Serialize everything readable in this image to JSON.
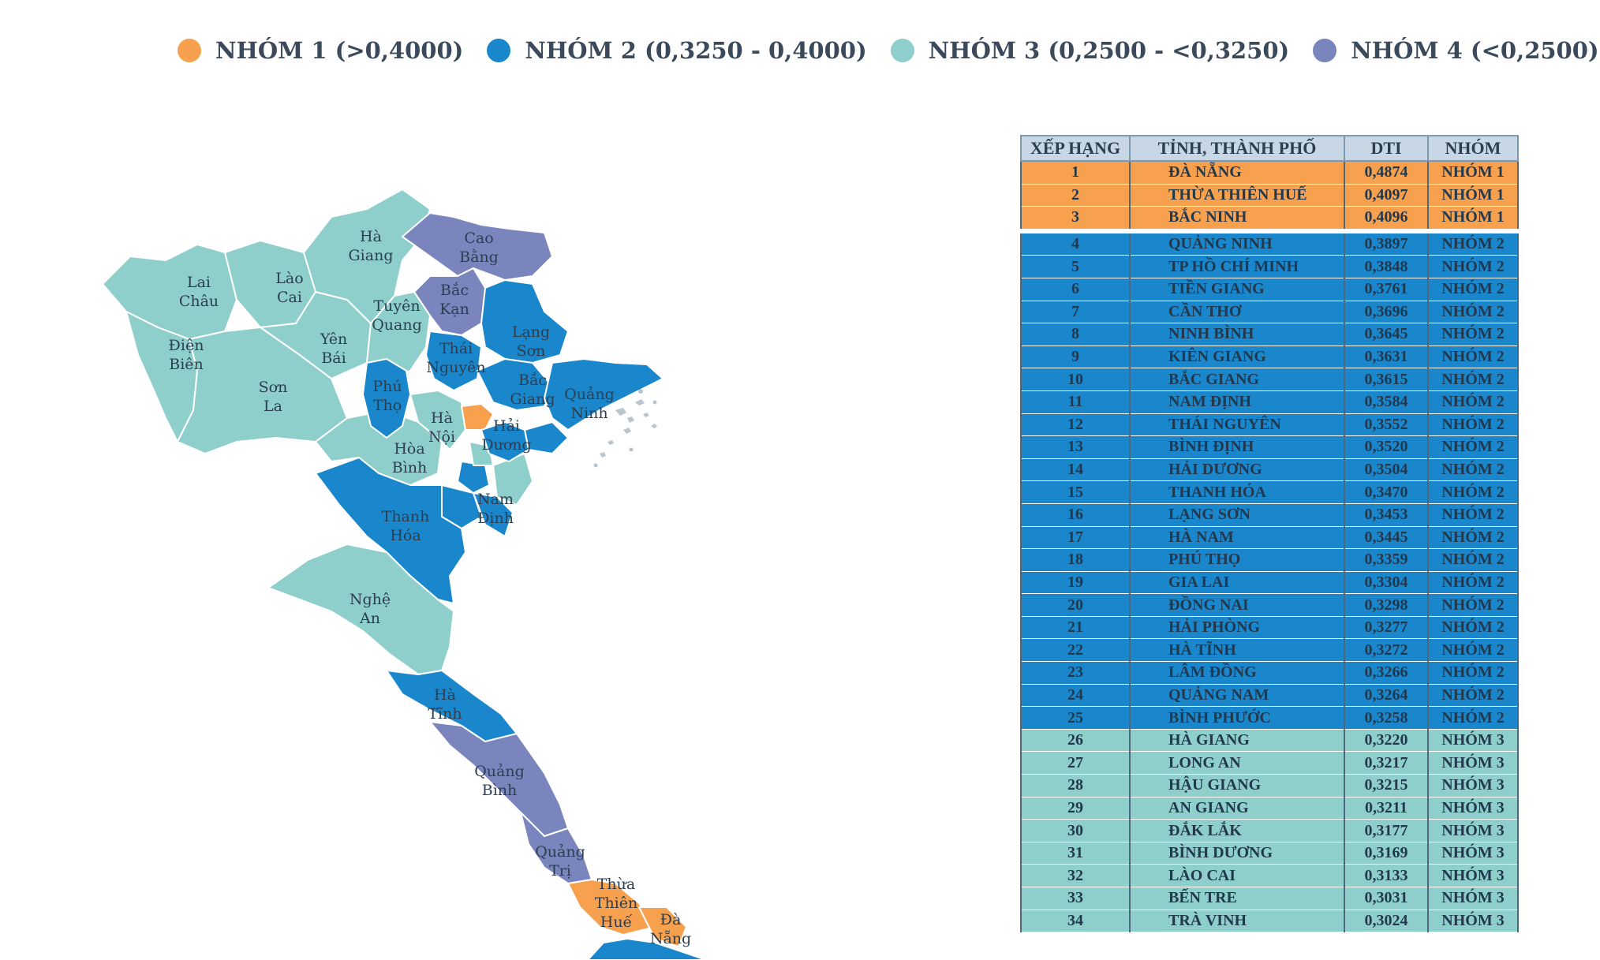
{
  "legend": [
    {
      "label": "NHÓM 1 (>0,4000)",
      "color": "#f7a14e"
    },
    {
      "label": "NHÓM 2 (0,3250 - 0,4000)",
      "color": "#1a86cc"
    },
    {
      "label": "NHÓM 3 (0,2500 - <0,3250)",
      "color": "#8ecfcb"
    },
    {
      "label": "NHÓM 4 (<0,2500)",
      "color": "#7b85bd"
    }
  ],
  "colors": {
    "group1": "#f7a14e",
    "group2": "#1a86cc",
    "group3": "#8ecfcb",
    "group4": "#7b85bd"
  },
  "map_labels": [
    "Hà\nGiang",
    "Cao\nBằng",
    "Lai\nChâu",
    "Lào\nCai",
    "Bắc\nKạn",
    "Tuyên\nQuang",
    "Điện\nBiên",
    "Yên\nBái",
    "Lạng\nSơn",
    "Thái\nNguyên",
    "Sơn\nLa",
    "Phú\nThọ",
    "Bắc\nGiang",
    "Quảng\nNinh",
    "Hà\nNội",
    "Hải\nDương",
    "Hòa\nBình",
    "Nam\nĐịnh",
    "Thanh\nHóa",
    "Nghệ\nAn",
    "Hà\nTĩnh",
    "Quảng\nBình",
    "Quảng\nTrị",
    "Thừa\nThiên\nHuế",
    "Đà\nNẵng"
  ],
  "table": {
    "headers": [
      "XẾP HẠNG",
      "TỈNH, THÀNH PHỐ",
      "DTI",
      "NHÓM"
    ],
    "rows": [
      {
        "rank": "1",
        "name": "ĐÀ NẴNG",
        "dti": "0,4874",
        "group": "NHÓM 1",
        "g": 1
      },
      {
        "rank": "2",
        "name": "THỪA THIÊN HUẾ",
        "dti": "0,4097",
        "group": "NHÓM 1",
        "g": 1
      },
      {
        "rank": "3",
        "name": "BẮC NINH",
        "dti": "0,4096",
        "group": "NHÓM 1",
        "g": 1
      },
      {
        "rank": "4",
        "name": "QUẢNG NINH",
        "dti": "0,3897",
        "group": "NHÓM 2",
        "g": 2
      },
      {
        "rank": "5",
        "name": "TP HỒ CHÍ MINH",
        "dti": "0,3848",
        "group": "NHÓM 2",
        "g": 2
      },
      {
        "rank": "6",
        "name": "TIỀN GIANG",
        "dti": "0,3761",
        "group": "NHÓM 2",
        "g": 2
      },
      {
        "rank": "7",
        "name": "CẦN THƠ",
        "dti": "0,3696",
        "group": "NHÓM 2",
        "g": 2
      },
      {
        "rank": "8",
        "name": "NINH BÌNH",
        "dti": "0,3645",
        "group": "NHÓM 2",
        "g": 2
      },
      {
        "rank": "9",
        "name": "KIÊN GIANG",
        "dti": "0,3631",
        "group": "NHÓM 2",
        "g": 2
      },
      {
        "rank": "10",
        "name": "BẮC GIANG",
        "dti": "0,3615",
        "group": "NHÓM 2",
        "g": 2
      },
      {
        "rank": "11",
        "name": "NAM ĐỊNH",
        "dti": "0,3584",
        "group": "NHÓM 2",
        "g": 2
      },
      {
        "rank": "12",
        "name": "THÁI NGUYÊN",
        "dti": "0,3552",
        "group": "NHÓM 2",
        "g": 2
      },
      {
        "rank": "13",
        "name": "BÌNH ĐỊNH",
        "dti": "0,3520",
        "group": "NHÓM 2",
        "g": 2
      },
      {
        "rank": "14",
        "name": "HẢI DƯƠNG",
        "dti": "0,3504",
        "group": "NHÓM 2",
        "g": 2
      },
      {
        "rank": "15",
        "name": "THANH HÓA",
        "dti": "0,3470",
        "group": "NHÓM 2",
        "g": 2
      },
      {
        "rank": "16",
        "name": "LẠNG SƠN",
        "dti": "0,3453",
        "group": "NHÓM 2",
        "g": 2
      },
      {
        "rank": "17",
        "name": "HÀ NAM",
        "dti": "0,3445",
        "group": "NHÓM 2",
        "g": 2
      },
      {
        "rank": "18",
        "name": "PHÚ THỌ",
        "dti": "0,3359",
        "group": "NHÓM 2",
        "g": 2
      },
      {
        "rank": "19",
        "name": "GIA LAI",
        "dti": "0,3304",
        "group": "NHÓM 2",
        "g": 2
      },
      {
        "rank": "20",
        "name": "ĐỒNG NAI",
        "dti": "0,3298",
        "group": "NHÓM 2",
        "g": 2
      },
      {
        "rank": "21",
        "name": "HẢI PHÒNG",
        "dti": "0,3277",
        "group": "NHÓM 2",
        "g": 2
      },
      {
        "rank": "22",
        "name": "HÀ TĨNH",
        "dti": "0,3272",
        "group": "NHÓM 2",
        "g": 2
      },
      {
        "rank": "23",
        "name": "LÂM ĐỒNG",
        "dti": "0,3266",
        "group": "NHÓM 2",
        "g": 2
      },
      {
        "rank": "24",
        "name": "QUẢNG NAM",
        "dti": "0,3264",
        "group": "NHÓM 2",
        "g": 2
      },
      {
        "rank": "25",
        "name": "BÌNH PHƯỚC",
        "dti": "0,3258",
        "group": "NHÓM 2",
        "g": 2
      },
      {
        "rank": "26",
        "name": "HÀ GIANG",
        "dti": "0,3220",
        "group": "NHÓM 3",
        "g": 3
      },
      {
        "rank": "27",
        "name": "LONG AN",
        "dti": "0,3217",
        "group": "NHÓM 3",
        "g": 3
      },
      {
        "rank": "28",
        "name": "HẬU GIANG",
        "dti": "0,3215",
        "group": "NHÓM 3",
        "g": 3
      },
      {
        "rank": "29",
        "name": "AN GIANG",
        "dti": "0,3211",
        "group": "NHÓM 3",
        "g": 3
      },
      {
        "rank": "30",
        "name": "ĐẮK LẮK",
        "dti": "0,3177",
        "group": "NHÓM 3",
        "g": 3
      },
      {
        "rank": "31",
        "name": "BÌNH DƯƠNG",
        "dti": "0,3169",
        "group": "NHÓM 3",
        "g": 3
      },
      {
        "rank": "32",
        "name": "LÀO CAI",
        "dti": "0,3133",
        "group": "NHÓM 3",
        "g": 3
      },
      {
        "rank": "33",
        "name": "BẾN TRE",
        "dti": "0,3031",
        "group": "NHÓM 3",
        "g": 3
      },
      {
        "rank": "34",
        "name": "TRÀ VINH",
        "dti": "0,3024",
        "group": "NHÓM 3",
        "g": 3
      }
    ]
  }
}
